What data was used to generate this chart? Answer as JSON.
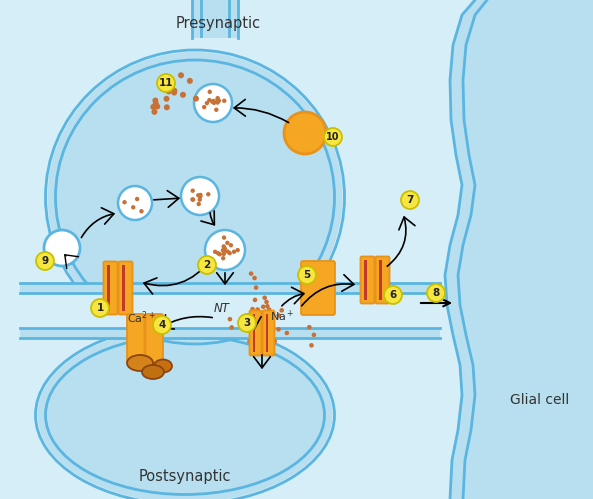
{
  "bg_color": "#d6eef7",
  "cell_color": "#b8dff0",
  "cell_outline": "#5ab5e0",
  "channel_color": "#f5a623",
  "channel_dark": "#e8921a",
  "channel_stripe": "#c0392b",
  "dot_color": "#c87137",
  "dot_outline": "#b8602a",
  "label_bg": "#f7e642",
  "label_outline": "#c8c000",
  "text_color": "#333333",
  "white": "#ffffff",
  "orange_fill": "#f5a623",
  "presynaptic_label": "Presynaptic",
  "postsynaptic_label": "Postsynaptic",
  "glial_label": "Glial cell",
  "ca_label": "Ca2+",
  "nt_label": "NT",
  "na_label": "Na+"
}
